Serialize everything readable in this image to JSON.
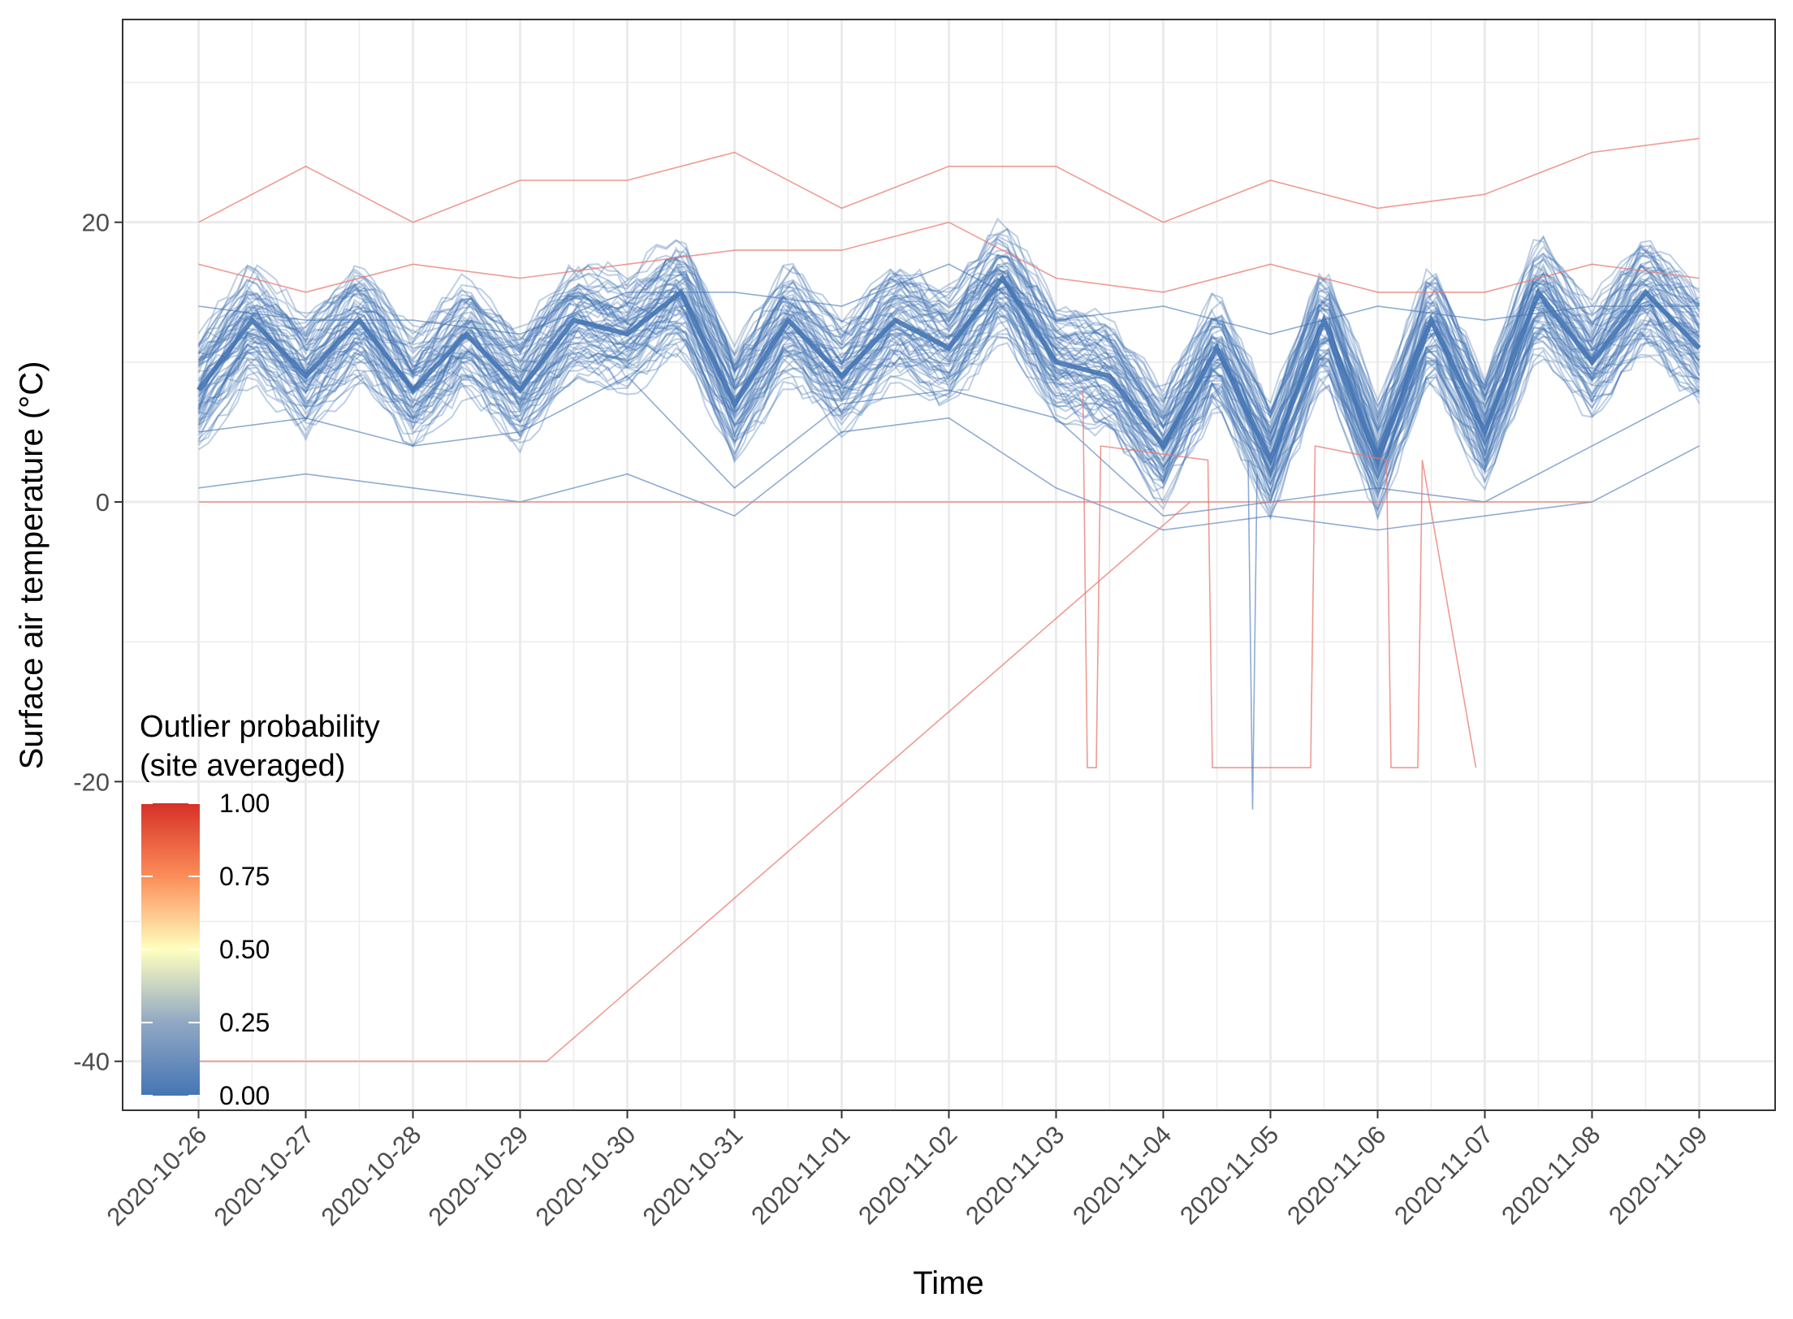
{
  "chart_data": {
    "type": "line",
    "title": "",
    "xlabel": "Time",
    "ylabel": "Surface air temperature (°C)",
    "x_ticks": [
      "2020-10-26",
      "2020-10-27",
      "2020-10-28",
      "2020-10-29",
      "2020-10-30",
      "2020-10-31",
      "2020-11-01",
      "2020-11-02",
      "2020-11-03",
      "2020-11-04",
      "2020-11-05",
      "2020-11-06",
      "2020-11-07",
      "2020-11-08",
      "2020-11-09"
    ],
    "xlim": [
      "2020-10-25T07:00",
      "2020-11-09T17:00"
    ],
    "y_ticks": [
      20,
      0,
      -20,
      -40
    ],
    "ylim": [
      -43.5,
      34.5
    ],
    "grid": true,
    "legend": {
      "title_line1": "Outlier probability",
      "title_line2": "(site averaged)",
      "placement": "bottom-left inside",
      "labels": [
        "1.00",
        "0.75",
        "0.50",
        "0.25",
        "0.00"
      ],
      "values": [
        1.0,
        0.75,
        0.5,
        0.25,
        0.0
      ],
      "colors": [
        "#d73027",
        "#fc8d59",
        "#ffffbf",
        "#91a8c4",
        "#4575b4"
      ]
    },
    "line_colors": {
      "normal": "#4575b4",
      "outlier": "#e8796f"
    },
    "series": [
      {
        "name": "",
        "outlier_prob": 0.0,
        "x": [
          "2020-10-26",
          "2020-10-26T12:00",
          "2020-10-27",
          "2020-10-27T12:00",
          "2020-10-28",
          "2020-10-28T12:00",
          "2020-10-29",
          "2020-10-29T12:00",
          "2020-10-30",
          "2020-10-30T12:00",
          "2020-10-31",
          "2020-10-31T12:00",
          "2020-11-01",
          "2020-11-01T12:00",
          "2020-11-02",
          "2020-11-02T12:00",
          "2020-11-03",
          "2020-11-03T12:00",
          "2020-11-04",
          "2020-11-04T12:00",
          "2020-11-05",
          "2020-11-05T12:00",
          "2020-11-06",
          "2020-11-06T12:00",
          "2020-11-07",
          "2020-11-07T12:00",
          "2020-11-08",
          "2020-11-08T12:00",
          "2020-11-09"
        ],
        "y": [
          8,
          13,
          9,
          13,
          8,
          12,
          8,
          13,
          12,
          15,
          7,
          13,
          9,
          13,
          11,
          16,
          10,
          9,
          4,
          11,
          3,
          13,
          3,
          13,
          5,
          15,
          10,
          15,
          11
        ]
      },
      {
        "name": "",
        "outlier_prob": 0.0,
        "x": [
          "2020-10-26",
          "2020-10-27",
          "2020-10-28",
          "2020-10-29",
          "2020-10-30",
          "2020-10-31",
          "2020-11-01",
          "2020-11-02",
          "2020-11-03",
          "2020-11-04",
          "2020-11-05",
          "2020-11-06",
          "2020-11-07",
          "2020-11-08",
          "2020-11-09"
        ],
        "y": [
          5,
          6,
          4,
          5,
          9,
          1,
          7,
          8,
          6,
          -1,
          0,
          1,
          0,
          4,
          8
        ]
      },
      {
        "name": "",
        "outlier_prob": 0.0,
        "x": [
          "2020-10-26",
          "2020-10-27",
          "2020-10-28",
          "2020-10-29",
          "2020-10-30",
          "2020-10-31",
          "2020-11-01",
          "2020-11-02",
          "2020-11-03",
          "2020-11-04",
          "2020-11-05",
          "2020-11-06",
          "2020-11-07",
          "2020-11-08",
          "2020-11-09"
        ],
        "y": [
          1,
          2,
          1,
          0,
          2,
          -1,
          5,
          6,
          1,
          -2,
          -1,
          -2,
          -1,
          0,
          4
        ]
      },
      {
        "name": "",
        "outlier_prob": 0.0,
        "x": [
          "2020-10-26",
          "2020-10-27",
          "2020-10-28",
          "2020-10-29",
          "2020-10-30",
          "2020-10-31",
          "2020-11-01",
          "2020-11-02",
          "2020-11-03",
          "2020-11-04",
          "2020-11-05",
          "2020-11-06",
          "2020-11-07",
          "2020-11-08",
          "2020-11-09"
        ],
        "y": [
          14,
          13,
          13,
          12,
          15,
          15,
          14,
          17,
          13,
          14,
          12,
          14,
          13,
          14,
          14
        ]
      },
      {
        "name": "",
        "outlier_prob": 1.0,
        "x": [
          "2020-10-26",
          "2020-10-27",
          "2020-10-28",
          "2020-10-29",
          "2020-10-30",
          "2020-10-31",
          "2020-11-01",
          "2020-11-02",
          "2020-11-03",
          "2020-11-04",
          "2020-11-05",
          "2020-11-06",
          "2020-11-07",
          "2020-11-08",
          "2020-11-09"
        ],
        "y": [
          20,
          24,
          20,
          23,
          23,
          25,
          21,
          24,
          24,
          20,
          23,
          21,
          22,
          25,
          26
        ]
      },
      {
        "name": "",
        "outlier_prob": 1.0,
        "x": [
          "2020-10-26",
          "2020-10-27",
          "2020-10-28",
          "2020-10-29",
          "2020-10-30",
          "2020-10-31",
          "2020-11-01",
          "2020-11-02",
          "2020-11-03",
          "2020-11-04",
          "2020-11-05",
          "2020-11-06",
          "2020-11-07",
          "2020-11-08",
          "2020-11-09"
        ],
        "y": [
          17,
          15,
          17,
          16,
          17,
          18,
          18,
          20,
          16,
          15,
          17,
          15,
          15,
          17,
          16
        ]
      },
      {
        "name": "",
        "outlier_prob": 1.0,
        "x": [
          "2020-10-26",
          "2020-11-04T06:00",
          "2020-11-05",
          "2020-11-06",
          "2020-11-07",
          "2020-11-08"
        ],
        "y": [
          0,
          0,
          0,
          0,
          0,
          0
        ]
      },
      {
        "name": "",
        "outlier_prob": 1.0,
        "x": [
          "2020-10-26",
          "2020-10-29T06:00",
          "2020-11-04T06:00"
        ],
        "y": [
          -40,
          -40,
          0
        ]
      },
      {
        "name": "",
        "outlier_prob": 1.0,
        "x": [
          "2020-11-03T06:00",
          "2020-11-03T07:00",
          "2020-11-03T09:00",
          "2020-11-03T10:00",
          "2020-11-04T10:00",
          "2020-11-04T11:00",
          "2020-11-05T09:00",
          "2020-11-05T10:00",
          "2020-11-06T02:00",
          "2020-11-06T03:00",
          "2020-11-06T09:00",
          "2020-11-06T10:00",
          "2020-11-06T22:00"
        ],
        "y": [
          8,
          -19,
          -19,
          4,
          3,
          -19,
          -19,
          4,
          3,
          -19,
          -19,
          3,
          -19
        ]
      },
      {
        "name": "",
        "outlier_prob": 0.0,
        "x": [
          "2020-11-04T19:00",
          "2020-11-04T20:00",
          "2020-11-04T21:00"
        ],
        "y": [
          3,
          -22,
          2
        ]
      }
    ]
  }
}
